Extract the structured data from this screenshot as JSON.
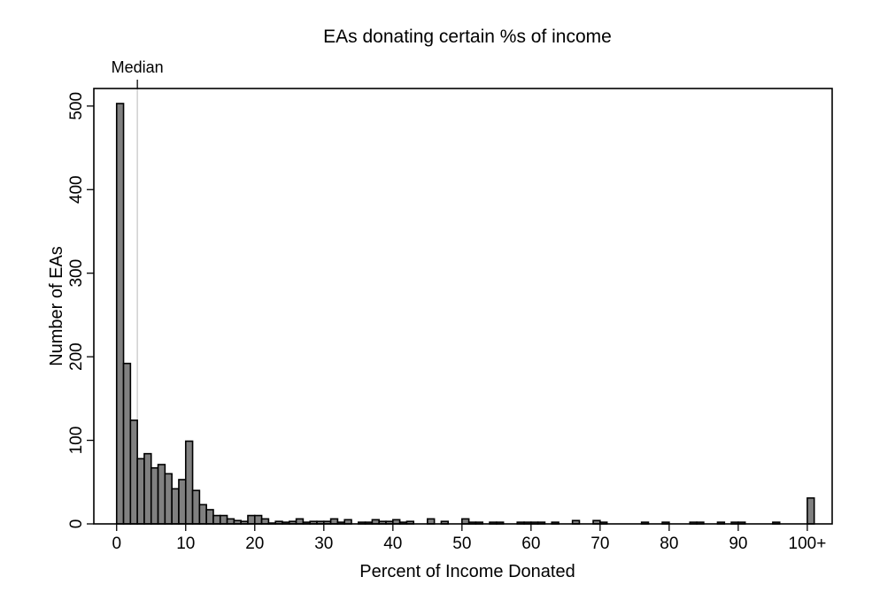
{
  "chart_data": {
    "type": "bar",
    "title": "EAs donating certain %s of income",
    "xlabel": "Percent of Income Donated",
    "ylabel": "Number of EAs",
    "bin_width": 1,
    "xlim": [
      -3.3,
      103.6
    ],
    "ylim": [
      0,
      521
    ],
    "x_ticks": [
      0,
      10,
      20,
      30,
      40,
      50,
      60,
      70,
      80,
      90,
      100
    ],
    "x_tick_labels": [
      "0",
      "10",
      "20",
      "30",
      "40",
      "50",
      "60",
      "70",
      "80",
      "90",
      "100+"
    ],
    "y_ticks": [
      0,
      100,
      200,
      300,
      400,
      500
    ],
    "y_tick_labels": [
      "0",
      "100",
      "200",
      "300",
      "400",
      "500"
    ],
    "grid": false,
    "bar_color": "#808080",
    "edge_color": "#000000",
    "median": {
      "label": "Median",
      "value": 3,
      "color": "#d0d0d0"
    },
    "bins": [
      {
        "x": 0,
        "count": 503
      },
      {
        "x": 1,
        "count": 192
      },
      {
        "x": 2,
        "count": 124
      },
      {
        "x": 3,
        "count": 78
      },
      {
        "x": 4,
        "count": 84
      },
      {
        "x": 5,
        "count": 67
      },
      {
        "x": 6,
        "count": 71
      },
      {
        "x": 7,
        "count": 60
      },
      {
        "x": 8,
        "count": 42
      },
      {
        "x": 9,
        "count": 53
      },
      {
        "x": 10,
        "count": 99
      },
      {
        "x": 11,
        "count": 40
      },
      {
        "x": 12,
        "count": 23
      },
      {
        "x": 13,
        "count": 17
      },
      {
        "x": 14,
        "count": 10
      },
      {
        "x": 15,
        "count": 10
      },
      {
        "x": 16,
        "count": 6
      },
      {
        "x": 17,
        "count": 4
      },
      {
        "x": 18,
        "count": 3
      },
      {
        "x": 19,
        "count": 10
      },
      {
        "x": 20,
        "count": 10
      },
      {
        "x": 21,
        "count": 6
      },
      {
        "x": 22,
        "count": 1
      },
      {
        "x": 23,
        "count": 3
      },
      {
        "x": 24,
        "count": 2
      },
      {
        "x": 25,
        "count": 3
      },
      {
        "x": 26,
        "count": 6
      },
      {
        "x": 27,
        "count": 2
      },
      {
        "x": 28,
        "count": 3
      },
      {
        "x": 29,
        "count": 3
      },
      {
        "x": 30,
        "count": 3
      },
      {
        "x": 31,
        "count": 6
      },
      {
        "x": 32,
        "count": 2
      },
      {
        "x": 33,
        "count": 5
      },
      {
        "x": 35,
        "count": 2
      },
      {
        "x": 36,
        "count": 2
      },
      {
        "x": 37,
        "count": 5
      },
      {
        "x": 38,
        "count": 3
      },
      {
        "x": 39,
        "count": 3
      },
      {
        "x": 40,
        "count": 5
      },
      {
        "x": 41,
        "count": 2
      },
      {
        "x": 42,
        "count": 3
      },
      {
        "x": 45,
        "count": 6
      },
      {
        "x": 47,
        "count": 3
      },
      {
        "x": 50,
        "count": 6
      },
      {
        "x": 51,
        "count": 2
      },
      {
        "x": 52,
        "count": 2
      },
      {
        "x": 54,
        "count": 2
      },
      {
        "x": 55,
        "count": 2
      },
      {
        "x": 58,
        "count": 2
      },
      {
        "x": 59,
        "count": 2
      },
      {
        "x": 60,
        "count": 2
      },
      {
        "x": 61,
        "count": 2
      },
      {
        "x": 63,
        "count": 2
      },
      {
        "x": 66,
        "count": 4
      },
      {
        "x": 69,
        "count": 4
      },
      {
        "x": 70,
        "count": 2
      },
      {
        "x": 76,
        "count": 2
      },
      {
        "x": 79,
        "count": 2
      },
      {
        "x": 83,
        "count": 2
      },
      {
        "x": 84,
        "count": 2
      },
      {
        "x": 87,
        "count": 2
      },
      {
        "x": 89,
        "count": 2
      },
      {
        "x": 90,
        "count": 2
      },
      {
        "x": 95,
        "count": 2
      },
      {
        "x": 100,
        "count": 31
      }
    ]
  }
}
